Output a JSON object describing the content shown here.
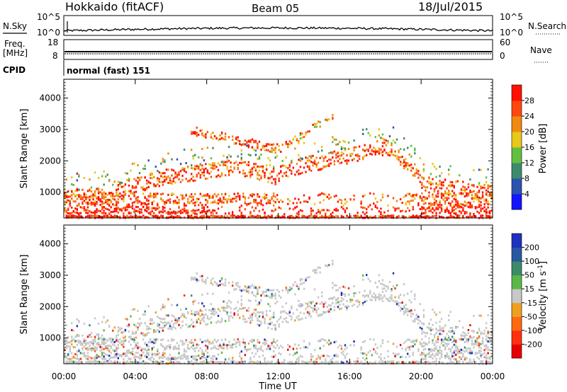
{
  "header": {
    "station": "Hokkaido (fitACF)",
    "beam": "Beam 05",
    "date": "18/Jul/2015"
  },
  "noise_panel": {
    "left_label": "N.Sky",
    "right_label": "N.Search",
    "left_ticks": [
      "10^5",
      "10^0"
    ],
    "right_ticks": [
      "10^5",
      "10^0"
    ]
  },
  "freq_panel": {
    "left_label_line1": "Freq.",
    "left_label_line2": "[MHz]",
    "right_label": "Nave",
    "left_ticks": [
      "18",
      "8"
    ],
    "right_ticks": [
      "60",
      "0"
    ]
  },
  "cpid_panel": {
    "label": "CPID",
    "mode_text": "normal (fast) 151"
  },
  "chart_data": [
    {
      "type": "heatmap",
      "name": "power",
      "ylabel": "Slant Range [km]",
      "ylim": [
        180,
        4600
      ],
      "yticks": [
        1000,
        2000,
        3000,
        4000
      ],
      "colorbar": {
        "label": "Power [dB]",
        "ticks": [
          "4",
          "8",
          "12",
          "16",
          "20",
          "24",
          "28"
        ],
        "colors": [
          "#1414ff",
          "#2a52b0",
          "#3e8a6c",
          "#62c040",
          "#e8c818",
          "#f08a10",
          "#ff4810",
          "#ff1000"
        ]
      }
    },
    {
      "type": "heatmap",
      "name": "velocity",
      "ylabel": "Slant Range [km]",
      "ylim": [
        180,
        4600
      ],
      "yticks": [
        1000,
        2000,
        3000,
        4000
      ],
      "colorbar": {
        "label": "Velocity [m s^-1]",
        "ticks": [
          "200",
          "100",
          "50",
          "15",
          "-15",
          "-50",
          "-100",
          "-200"
        ],
        "colors": [
          "#2030c0",
          "#2858a0",
          "#3c8a6a",
          "#5ab848",
          "#c8c8c8",
          "#f0a020",
          "#ff6a10",
          "#ff3010",
          "#e80000"
        ]
      }
    }
  ],
  "x_axis": {
    "tick_labels": [
      "00:00",
      "04:00",
      "08:00",
      "12:00",
      "16:00",
      "20:00",
      "00:00"
    ],
    "label": "Time UT"
  }
}
